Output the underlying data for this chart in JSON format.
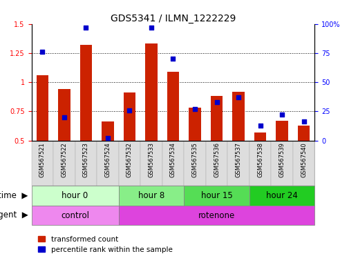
{
  "title": "GDS5341 / ILMN_1222229",
  "samples": [
    "GSM567521",
    "GSM567522",
    "GSM567523",
    "GSM567524",
    "GSM567532",
    "GSM567533",
    "GSM567534",
    "GSM567535",
    "GSM567536",
    "GSM567537",
    "GSM567538",
    "GSM567539",
    "GSM567540"
  ],
  "red_values": [
    1.06,
    0.94,
    1.32,
    0.66,
    0.91,
    1.33,
    1.09,
    0.78,
    0.88,
    0.92,
    0.57,
    0.67,
    0.63
  ],
  "blue_percentiles": [
    76,
    20,
    97,
    2,
    26,
    97,
    70,
    27,
    33,
    37,
    13,
    22,
    16
  ],
  "ylim_left": [
    0.5,
    1.5
  ],
  "ylim_right": [
    0,
    100
  ],
  "yticks_left": [
    0.5,
    0.75,
    1.0,
    1.25,
    1.5
  ],
  "yticks_right": [
    0,
    25,
    50,
    75,
    100
  ],
  "ytick_labels_left": [
    "0.5",
    "0.75",
    "1",
    "1.25",
    "1.5"
  ],
  "ytick_labels_right": [
    "0",
    "25",
    "50",
    "75",
    "100%"
  ],
  "bar_color": "#cc2200",
  "dot_color": "#0000cc",
  "bar_width": 0.55,
  "dot_size": 18,
  "time_groups": [
    {
      "label": "hour 0",
      "start": 0,
      "end": 4,
      "color": "#ccffcc"
    },
    {
      "label": "hour 8",
      "start": 4,
      "end": 7,
      "color": "#88ee88"
    },
    {
      "label": "hour 15",
      "start": 7,
      "end": 10,
      "color": "#55dd55"
    },
    {
      "label": "hour 24",
      "start": 10,
      "end": 13,
      "color": "#22cc22"
    }
  ],
  "agent_groups": [
    {
      "label": "control",
      "start": 0,
      "end": 4,
      "color": "#ee88ee"
    },
    {
      "label": "rotenone",
      "start": 4,
      "end": 13,
      "color": "#dd44dd"
    }
  ],
  "legend_red": "transformed count",
  "legend_blue": "percentile rank within the sample",
  "bg_color": "#ffffff",
  "title_fontsize": 10,
  "tick_fontsize": 7,
  "label_fontsize": 8.5,
  "xtick_fontsize": 6
}
